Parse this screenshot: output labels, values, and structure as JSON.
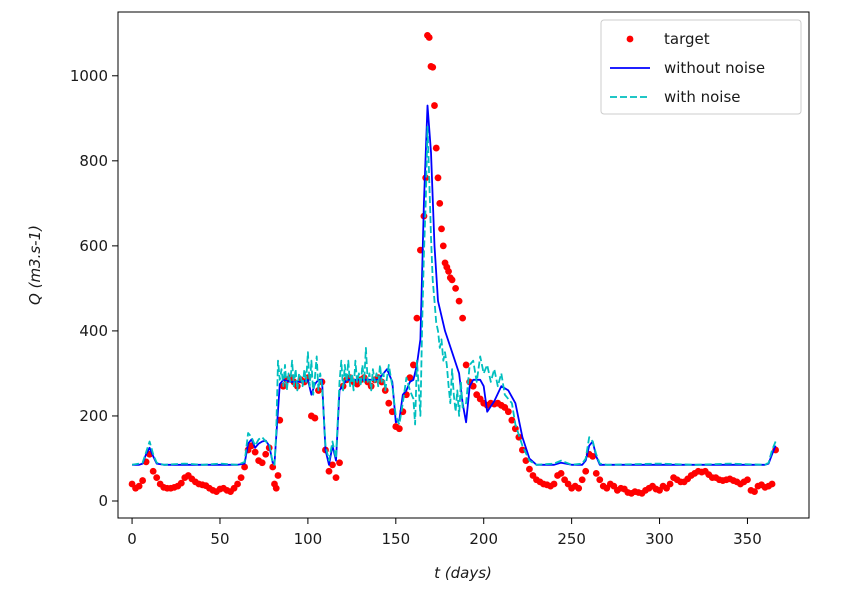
{
  "chart_data": {
    "type": "line",
    "title": "",
    "xlabel": "t (days)",
    "ylabel": "Q (m3.s-1)",
    "xlim": [
      -8,
      385
    ],
    "ylim": [
      -40,
      1150
    ],
    "xticks": [
      0,
      50,
      100,
      150,
      200,
      250,
      300,
      350
    ],
    "yticks": [
      0,
      200,
      400,
      600,
      800,
      1000
    ],
    "grid": false,
    "legend_position": "top-right",
    "series": [
      {
        "name": "target",
        "style": "markers",
        "color": "#ff0000",
        "x": [
          0,
          2,
          4,
          6,
          8,
          10,
          12,
          14,
          16,
          18,
          20,
          22,
          24,
          26,
          28,
          30,
          32,
          34,
          36,
          38,
          40,
          42,
          44,
          46,
          48,
          50,
          52,
          54,
          56,
          58,
          60,
          62,
          64,
          66,
          68,
          70,
          72,
          74,
          76,
          78,
          80,
          81,
          82,
          83,
          84,
          86,
          88,
          90,
          92,
          94,
          96,
          98,
          100,
          102,
          104,
          106,
          108,
          110,
          112,
          114,
          116,
          118,
          120,
          122,
          124,
          126,
          128,
          130,
          132,
          134,
          136,
          138,
          140,
          142,
          144,
          146,
          148,
          150,
          152,
          154,
          156,
          158,
          160,
          162,
          164,
          166,
          167,
          168,
          169,
          170,
          171,
          172,
          173,
          174,
          175,
          176,
          177,
          178,
          179,
          180,
          181,
          182,
          184,
          186,
          188,
          190,
          192,
          194,
          196,
          198,
          200,
          202,
          204,
          206,
          208,
          210,
          212,
          214,
          216,
          218,
          220,
          222,
          224,
          226,
          228,
          230,
          232,
          234,
          236,
          238,
          240,
          242,
          244,
          246,
          248,
          250,
          252,
          254,
          256,
          258,
          260,
          262,
          264,
          266,
          268,
          270,
          272,
          274,
          276,
          278,
          280,
          282,
          284,
          286,
          288,
          290,
          292,
          294,
          296,
          298,
          300,
          302,
          304,
          306,
          308,
          310,
          312,
          314,
          316,
          318,
          320,
          322,
          324,
          326,
          328,
          330,
          332,
          334,
          336,
          338,
          340,
          342,
          344,
          346,
          348,
          350,
          352,
          354,
          356,
          358,
          360,
          362,
          364,
          366
        ],
        "y": [
          40,
          30,
          35,
          48,
          92,
          110,
          70,
          55,
          40,
          32,
          30,
          30,
          32,
          35,
          42,
          55,
          60,
          52,
          45,
          40,
          38,
          36,
          30,
          25,
          22,
          28,
          30,
          25,
          22,
          30,
          40,
          55,
          80,
          120,
          130,
          115,
          95,
          90,
          110,
          125,
          80,
          40,
          30,
          60,
          190,
          270,
          285,
          290,
          280,
          270,
          285,
          280,
          290,
          200,
          195,
          260,
          280,
          120,
          70,
          85,
          55,
          90,
          270,
          285,
          290,
          280,
          275,
          285,
          290,
          280,
          270,
          285,
          290,
          280,
          260,
          230,
          210,
          175,
          170,
          210,
          250,
          290,
          320,
          430,
          590,
          670,
          760,
          1095,
          1090,
          1022,
          1020,
          930,
          830,
          760,
          700,
          640,
          600,
          560,
          550,
          540,
          525,
          520,
          500,
          470,
          430,
          320,
          280,
          270,
          250,
          240,
          230,
          225,
          230,
          228,
          230,
          225,
          220,
          210,
          190,
          170,
          150,
          120,
          95,
          75,
          60,
          50,
          45,
          40,
          38,
          35,
          40,
          60,
          65,
          50,
          40,
          30,
          35,
          30,
          50,
          70,
          110,
          105,
          65,
          50,
          35,
          30,
          40,
          35,
          25,
          30,
          28,
          20,
          18,
          22,
          20,
          18,
          25,
          30,
          35,
          28,
          25,
          35,
          30,
          40,
          55,
          50,
          45,
          45,
          52,
          60,
          65,
          70,
          68,
          70,
          62,
          55,
          55,
          50,
          48,
          50,
          52,
          48,
          45,
          40,
          45,
          50,
          25,
          22,
          35,
          38,
          32,
          35,
          40,
          120
        ]
      },
      {
        "name": "without noise",
        "style": "solid",
        "color": "#0000ff",
        "x": [
          0,
          4,
          6,
          8,
          10,
          12,
          14,
          18,
          30,
          40,
          50,
          60,
          64,
          66,
          68,
          70,
          72,
          74,
          76,
          78,
          80,
          81,
          82,
          84,
          86,
          90,
          96,
          100,
          102,
          104,
          106,
          108,
          110,
          112,
          114,
          116,
          118,
          122,
          130,
          140,
          145,
          146,
          148,
          150,
          152,
          154,
          156,
          158,
          160,
          162,
          164,
          166,
          168,
          170,
          172,
          174,
          178,
          182,
          186,
          188,
          190,
          192,
          194,
          198,
          200,
          202,
          206,
          210,
          214,
          218,
          222,
          226,
          230,
          240,
          244,
          250,
          256,
          258,
          260,
          262,
          264,
          266,
          270,
          300,
          320,
          340,
          360,
          362,
          364,
          366
        ],
        "y": [
          85,
          85,
          88,
          110,
          125,
          105,
          88,
          85,
          85,
          85,
          85,
          85,
          88,
          135,
          145,
          125,
          135,
          140,
          142,
          130,
          90,
          88,
          150,
          275,
          285,
          280,
          280,
          285,
          250,
          275,
          285,
          285,
          120,
          85,
          130,
          95,
          260,
          285,
          285,
          285,
          310,
          300,
          280,
          185,
          190,
          250,
          260,
          280,
          285,
          320,
          380,
          700,
          930,
          820,
          600,
          470,
          400,
          350,
          300,
          230,
          185,
          270,
          285,
          285,
          270,
          210,
          235,
          270,
          260,
          230,
          150,
          100,
          85,
          85,
          90,
          85,
          85,
          95,
          130,
          140,
          105,
          85,
          85,
          85,
          85,
          85,
          85,
          88,
          110,
          130
        ]
      },
      {
        "name": "with noise",
        "style": "dashed",
        "color": "#00bfbf",
        "x": [
          0,
          4,
          6,
          8,
          10,
          12,
          14,
          18,
          30,
          40,
          50,
          60,
          64,
          66,
          68,
          70,
          72,
          74,
          76,
          78,
          80,
          81,
          82,
          83,
          84,
          85,
          86,
          87,
          88,
          89,
          90,
          91,
          92,
          93,
          94,
          95,
          96,
          97,
          98,
          99,
          100,
          101,
          102,
          103,
          104,
          105,
          106,
          107,
          108,
          110,
          112,
          114,
          116,
          118,
          119,
          120,
          121,
          122,
          123,
          124,
          125,
          126,
          127,
          128,
          129,
          130,
          131,
          132,
          133,
          134,
          135,
          136,
          137,
          138,
          139,
          140,
          141,
          142,
          143,
          144,
          145,
          146,
          148,
          150,
          152,
          154,
          156,
          158,
          160,
          161,
          162,
          163,
          164,
          165,
          166,
          167,
          168,
          169,
          170,
          171,
          172,
          173,
          174,
          175,
          176,
          177,
          178,
          179,
          180,
          181,
          182,
          183,
          184,
          185,
          186,
          187,
          188,
          190,
          192,
          194,
          196,
          198,
          200,
          202,
          204,
          206,
          208,
          210,
          212,
          214,
          216,
          218,
          222,
          226,
          230,
          240,
          244,
          250,
          256,
          258,
          260,
          262,
          264,
          266,
          270,
          300,
          320,
          340,
          360,
          362,
          364,
          366
        ],
        "y": [
          85,
          88,
          90,
          115,
          140,
          110,
          90,
          85,
          88,
          85,
          88,
          85,
          92,
          160,
          150,
          130,
          145,
          150,
          140,
          135,
          90,
          85,
          160,
          330,
          285,
          310,
          270,
          320,
          260,
          300,
          280,
          330,
          270,
          310,
          260,
          300,
          290,
          270,
          310,
          280,
          350,
          270,
          330,
          250,
          290,
          340,
          260,
          300,
          270,
          130,
          95,
          140,
          100,
          280,
          330,
          260,
          320,
          280,
          330,
          270,
          300,
          260,
          330,
          280,
          300,
          270,
          320,
          280,
          360,
          280,
          300,
          260,
          310,
          280,
          300,
          270,
          320,
          280,
          300,
          260,
          290,
          320,
          270,
          200,
          180,
          230,
          290,
          260,
          240,
          180,
          330,
          270,
          200,
          420,
          580,
          700,
          880,
          760,
          620,
          520,
          470,
          420,
          400,
          360,
          380,
          330,
          350,
          320,
          270,
          230,
          310,
          250,
          210,
          260,
          200,
          280,
          220,
          230,
          320,
          330,
          280,
          340,
          300,
          320,
          280,
          310,
          270,
          300,
          250,
          240,
          230,
          180,
          130,
          95,
          85,
          88,
          95,
          85,
          88,
          100,
          150,
          140,
          110,
          88,
          85,
          88,
          85,
          88,
          85,
          90,
          120,
          140
        ]
      }
    ]
  }
}
